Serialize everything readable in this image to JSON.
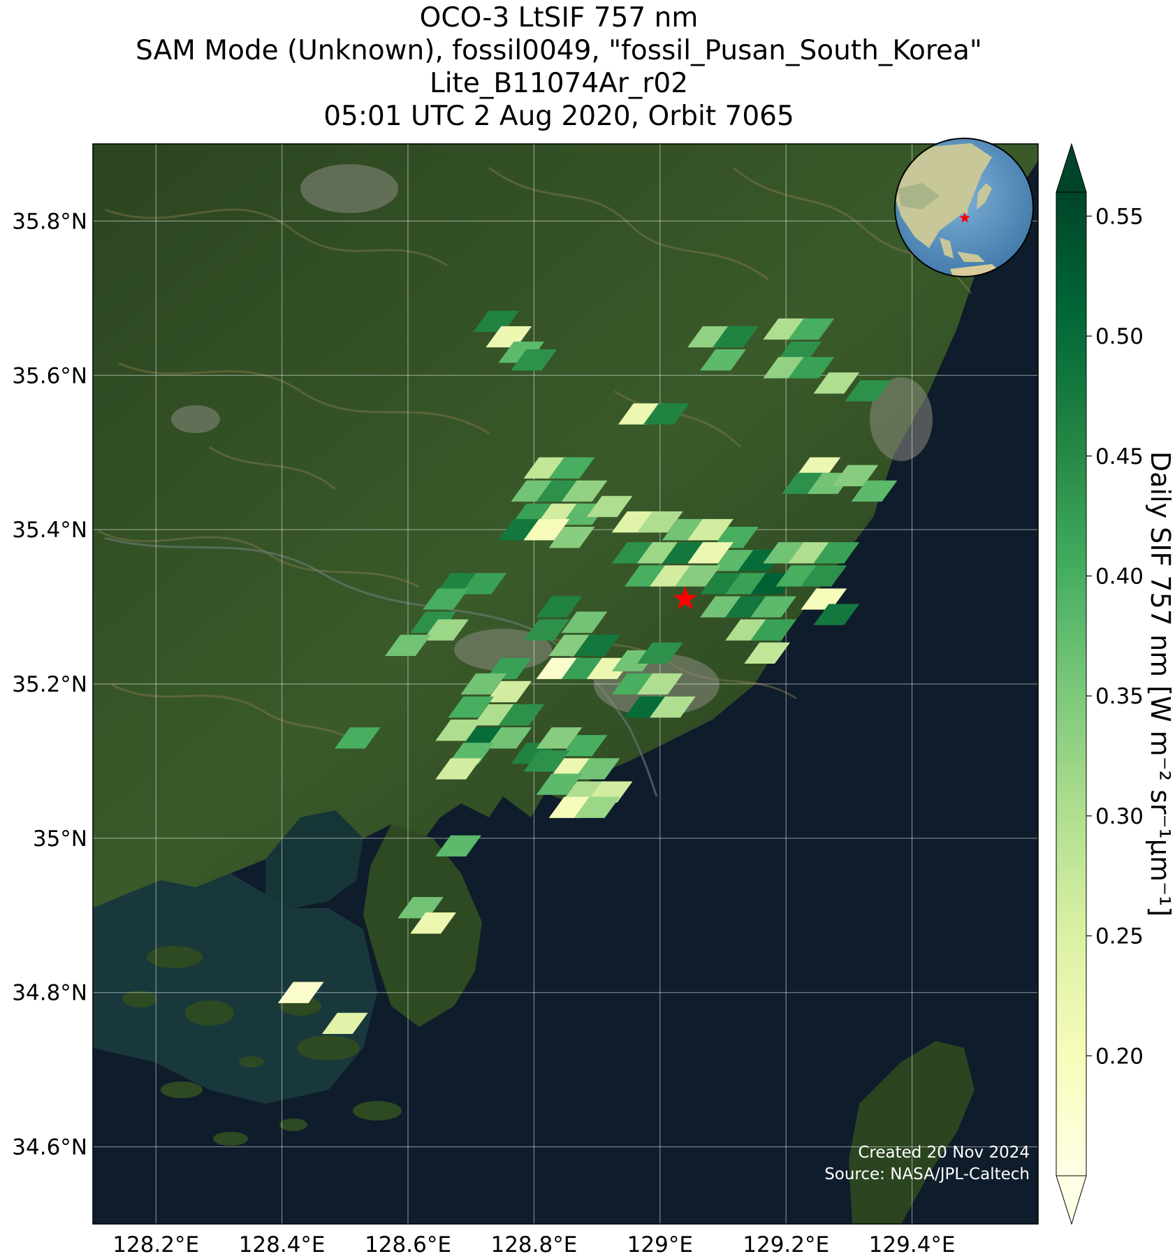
{
  "title": {
    "line1": "OCO-3 LtSIF 757 nm",
    "line2": "SAM Mode (Unknown), fossil0049, \"fossil_Pusan_South_Korea\"",
    "line3": "Lite_B11074Ar_r02",
    "line4": "05:01 UTC 2 Aug 2020, Orbit 7065"
  },
  "map": {
    "lon_range": [
      128.1,
      129.6
    ],
    "lat_range": [
      34.5,
      35.9
    ],
    "lon_ticks": [
      {
        "value": 128.2,
        "label": "128.2°E"
      },
      {
        "value": 128.4,
        "label": "128.4°E"
      },
      {
        "value": 128.6,
        "label": "128.6°E"
      },
      {
        "value": 128.8,
        "label": "128.8°E"
      },
      {
        "value": 129.0,
        "label": "129°E"
      },
      {
        "value": 129.2,
        "label": "129.2°E"
      },
      {
        "value": 129.4,
        "label": "129.4°E"
      }
    ],
    "lat_ticks": [
      {
        "value": 35.8,
        "label": "35.8°N"
      },
      {
        "value": 35.6,
        "label": "35.6°N"
      },
      {
        "value": 35.4,
        "label": "35.4°N"
      },
      {
        "value": 35.2,
        "label": "35.2°N"
      },
      {
        "value": 35.0,
        "label": "35°N"
      },
      {
        "value": 34.8,
        "label": "34.8°N"
      },
      {
        "value": 34.6,
        "label": "34.6°N"
      }
    ],
    "target_marker": {
      "lon": 129.04,
      "lat": 35.31,
      "color": "#ff0000",
      "icon": "star-icon"
    },
    "land_color": "#2f4a24",
    "sea_color": "#0f1c2b",
    "credit_line1": "Created 20 Nov 2024",
    "credit_line2": "Source: NASA/JPL-Caltech"
  },
  "globe_inset": {
    "icon": "globe-icon",
    "marker_color": "#ff0000"
  },
  "colorbar": {
    "label": "Daily SIF 757 nm [W m⁻² sr⁻¹μm⁻¹]",
    "range": [
      0.15,
      0.56
    ],
    "extend": "both",
    "colormap": "YlGn",
    "ticks": [
      {
        "value": 0.55,
        "label": "0.55"
      },
      {
        "value": 0.5,
        "label": "0.50"
      },
      {
        "value": 0.45,
        "label": "0.45"
      },
      {
        "value": 0.4,
        "label": "0.40"
      },
      {
        "value": 0.35,
        "label": "0.35"
      },
      {
        "value": 0.3,
        "label": "0.30"
      },
      {
        "value": 0.25,
        "label": "0.25"
      },
      {
        "value": 0.2,
        "label": "0.20"
      }
    ]
  },
  "chart_data": {
    "type": "heatmap",
    "xlabel": "",
    "ylabel": "",
    "units": "W m⁻² sr⁻¹μm⁻¹",
    "footprints": [
      {
        "lon": 128.74,
        "lat": 35.67,
        "value": 0.46
      },
      {
        "lon": 128.76,
        "lat": 35.65,
        "value": 0.22
      },
      {
        "lon": 128.78,
        "lat": 35.63,
        "value": 0.38
      },
      {
        "lon": 128.8,
        "lat": 35.62,
        "value": 0.44
      },
      {
        "lon": 129.08,
        "lat": 35.65,
        "value": 0.33
      },
      {
        "lon": 129.12,
        "lat": 35.65,
        "value": 0.46
      },
      {
        "lon": 129.1,
        "lat": 35.62,
        "value": 0.38
      },
      {
        "lon": 129.2,
        "lat": 35.66,
        "value": 0.3
      },
      {
        "lon": 129.24,
        "lat": 35.66,
        "value": 0.4
      },
      {
        "lon": 129.22,
        "lat": 35.63,
        "value": 0.44
      },
      {
        "lon": 129.2,
        "lat": 35.61,
        "value": 0.33
      },
      {
        "lon": 129.24,
        "lat": 35.61,
        "value": 0.42
      },
      {
        "lon": 129.28,
        "lat": 35.59,
        "value": 0.3
      },
      {
        "lon": 129.33,
        "lat": 35.58,
        "value": 0.44
      },
      {
        "lon": 128.97,
        "lat": 35.55,
        "value": 0.22
      },
      {
        "lon": 129.01,
        "lat": 35.55,
        "value": 0.46
      },
      {
        "lon": 128.82,
        "lat": 35.48,
        "value": 0.28
      },
      {
        "lon": 128.86,
        "lat": 35.48,
        "value": 0.4
      },
      {
        "lon": 128.8,
        "lat": 35.45,
        "value": 0.36
      },
      {
        "lon": 128.84,
        "lat": 35.45,
        "value": 0.44
      },
      {
        "lon": 128.88,
        "lat": 35.45,
        "value": 0.33
      },
      {
        "lon": 128.8,
        "lat": 35.42,
        "value": 0.42
      },
      {
        "lon": 128.84,
        "lat": 35.42,
        "value": 0.26
      },
      {
        "lon": 128.88,
        "lat": 35.42,
        "value": 0.38
      },
      {
        "lon": 128.92,
        "lat": 35.43,
        "value": 0.3
      },
      {
        "lon": 128.78,
        "lat": 35.4,
        "value": 0.48
      },
      {
        "lon": 128.82,
        "lat": 35.4,
        "value": 0.2
      },
      {
        "lon": 128.86,
        "lat": 35.39,
        "value": 0.34
      },
      {
        "lon": 128.96,
        "lat": 35.41,
        "value": 0.24
      },
      {
        "lon": 129.0,
        "lat": 35.41,
        "value": 0.3
      },
      {
        "lon": 129.04,
        "lat": 35.4,
        "value": 0.36
      },
      {
        "lon": 129.08,
        "lat": 35.4,
        "value": 0.26
      },
      {
        "lon": 129.12,
        "lat": 35.39,
        "value": 0.4
      },
      {
        "lon": 128.96,
        "lat": 35.37,
        "value": 0.44
      },
      {
        "lon": 129.0,
        "lat": 35.37,
        "value": 0.32
      },
      {
        "lon": 129.04,
        "lat": 35.37,
        "value": 0.48
      },
      {
        "lon": 129.08,
        "lat": 35.37,
        "value": 0.22
      },
      {
        "lon": 129.12,
        "lat": 35.36,
        "value": 0.38
      },
      {
        "lon": 129.16,
        "lat": 35.36,
        "value": 0.5
      },
      {
        "lon": 129.2,
        "lat": 35.37,
        "value": 0.36
      },
      {
        "lon": 129.24,
        "lat": 35.37,
        "value": 0.3
      },
      {
        "lon": 129.28,
        "lat": 35.37,
        "value": 0.42
      },
      {
        "lon": 128.98,
        "lat": 35.34,
        "value": 0.4
      },
      {
        "lon": 129.02,
        "lat": 35.34,
        "value": 0.26
      },
      {
        "lon": 129.06,
        "lat": 35.34,
        "value": 0.34
      },
      {
        "lon": 129.1,
        "lat": 35.33,
        "value": 0.46
      },
      {
        "lon": 129.14,
        "lat": 35.33,
        "value": 0.42
      },
      {
        "lon": 129.18,
        "lat": 35.33,
        "value": 0.52
      },
      {
        "lon": 129.22,
        "lat": 35.34,
        "value": 0.4
      },
      {
        "lon": 129.26,
        "lat": 35.34,
        "value": 0.44
      },
      {
        "lon": 129.1,
        "lat": 35.3,
        "value": 0.36
      },
      {
        "lon": 129.14,
        "lat": 35.3,
        "value": 0.48
      },
      {
        "lon": 129.18,
        "lat": 35.3,
        "value": 0.38
      },
      {
        "lon": 129.26,
        "lat": 35.31,
        "value": 0.2
      },
      {
        "lon": 129.14,
        "lat": 35.27,
        "value": 0.3
      },
      {
        "lon": 129.18,
        "lat": 35.27,
        "value": 0.42
      },
      {
        "lon": 129.28,
        "lat": 35.29,
        "value": 0.48
      },
      {
        "lon": 129.17,
        "lat": 35.24,
        "value": 0.28
      },
      {
        "lon": 128.68,
        "lat": 35.33,
        "value": 0.46
      },
      {
        "lon": 128.72,
        "lat": 35.33,
        "value": 0.42
      },
      {
        "lon": 128.66,
        "lat": 35.31,
        "value": 0.4
      },
      {
        "lon": 128.64,
        "lat": 35.28,
        "value": 0.44
      },
      {
        "lon": 128.66,
        "lat": 35.27,
        "value": 0.32
      },
      {
        "lon": 128.6,
        "lat": 35.25,
        "value": 0.36
      },
      {
        "lon": 128.84,
        "lat": 35.3,
        "value": 0.46
      },
      {
        "lon": 128.88,
        "lat": 35.28,
        "value": 0.36
      },
      {
        "lon": 128.82,
        "lat": 35.27,
        "value": 0.44
      },
      {
        "lon": 128.86,
        "lat": 35.25,
        "value": 0.34
      },
      {
        "lon": 128.9,
        "lat": 35.25,
        "value": 0.48
      },
      {
        "lon": 128.84,
        "lat": 35.22,
        "value": 0.18
      },
      {
        "lon": 128.88,
        "lat": 35.22,
        "value": 0.42
      },
      {
        "lon": 128.92,
        "lat": 35.22,
        "value": 0.22
      },
      {
        "lon": 128.96,
        "lat": 35.23,
        "value": 0.36
      },
      {
        "lon": 129.0,
        "lat": 35.24,
        "value": 0.44
      },
      {
        "lon": 128.96,
        "lat": 35.2,
        "value": 0.4
      },
      {
        "lon": 129.0,
        "lat": 35.2,
        "value": 0.3
      },
      {
        "lon": 128.98,
        "lat": 35.17,
        "value": 0.5
      },
      {
        "lon": 129.02,
        "lat": 35.17,
        "value": 0.3
      },
      {
        "lon": 128.76,
        "lat": 35.22,
        "value": 0.42
      },
      {
        "lon": 128.72,
        "lat": 35.2,
        "value": 0.36
      },
      {
        "lon": 128.76,
        "lat": 35.19,
        "value": 0.26
      },
      {
        "lon": 128.7,
        "lat": 35.17,
        "value": 0.4
      },
      {
        "lon": 128.74,
        "lat": 35.16,
        "value": 0.3
      },
      {
        "lon": 128.78,
        "lat": 35.16,
        "value": 0.44
      },
      {
        "lon": 128.68,
        "lat": 35.14,
        "value": 0.3
      },
      {
        "lon": 128.72,
        "lat": 35.13,
        "value": 0.5
      },
      {
        "lon": 128.76,
        "lat": 35.13,
        "value": 0.36
      },
      {
        "lon": 128.7,
        "lat": 35.11,
        "value": 0.38
      },
      {
        "lon": 128.8,
        "lat": 35.11,
        "value": 0.46
      },
      {
        "lon": 128.68,
        "lat": 35.09,
        "value": 0.26
      },
      {
        "lon": 128.52,
        "lat": 35.13,
        "value": 0.4
      },
      {
        "lon": 128.84,
        "lat": 35.13,
        "value": 0.34
      },
      {
        "lon": 128.88,
        "lat": 35.12,
        "value": 0.4
      },
      {
        "lon": 128.82,
        "lat": 35.1,
        "value": 0.44
      },
      {
        "lon": 128.86,
        "lat": 35.09,
        "value": 0.22
      },
      {
        "lon": 128.9,
        "lat": 35.09,
        "value": 0.36
      },
      {
        "lon": 128.84,
        "lat": 35.07,
        "value": 0.38
      },
      {
        "lon": 128.88,
        "lat": 35.06,
        "value": 0.3
      },
      {
        "lon": 128.92,
        "lat": 35.06,
        "value": 0.26
      },
      {
        "lon": 128.86,
        "lat": 35.04,
        "value": 0.2
      },
      {
        "lon": 128.9,
        "lat": 35.04,
        "value": 0.32
      },
      {
        "lon": 128.68,
        "lat": 34.99,
        "value": 0.38
      },
      {
        "lon": 128.62,
        "lat": 34.91,
        "value": 0.36
      },
      {
        "lon": 128.64,
        "lat": 34.89,
        "value": 0.22
      },
      {
        "lon": 128.43,
        "lat": 34.8,
        "value": 0.18
      },
      {
        "lon": 128.5,
        "lat": 34.76,
        "value": 0.24
      },
      {
        "lon": 129.25,
        "lat": 35.48,
        "value": 0.22
      },
      {
        "lon": 129.23,
        "lat": 35.46,
        "value": 0.44
      },
      {
        "lon": 129.27,
        "lat": 35.46,
        "value": 0.36
      },
      {
        "lon": 129.31,
        "lat": 35.47,
        "value": 0.34
      },
      {
        "lon": 129.34,
        "lat": 35.45,
        "value": 0.38
      }
    ]
  }
}
